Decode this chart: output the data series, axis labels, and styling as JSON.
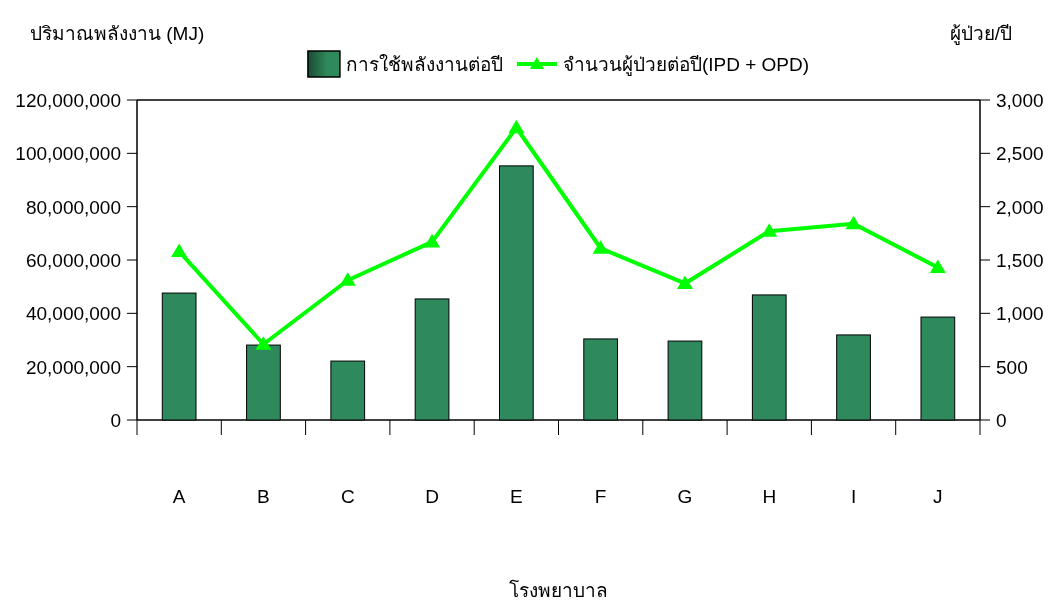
{
  "chart_data": {
    "type": "bar",
    "xlabel": "โรงพยาบาล",
    "ylabel": "ปริมาณพลังงาน (MJ)",
    "y2label": "ผู้ป่วย/ปี",
    "categories": [
      "A",
      "B",
      "C",
      "D",
      "E",
      "F",
      "G",
      "H",
      "I",
      "J"
    ],
    "series": [
      {
        "name": "การใช้พลังงานต่อปี",
        "color": "#2e8a5c",
        "values": [
          47600000,
          28100000,
          22100000,
          45400000,
          95300000,
          30400000,
          29600000,
          46900000,
          31900000,
          38600000
        ]
      },
      {
        "name": "จำนวนผู้ป่วยต่อปี(IPD + OPD)",
        "type": "line",
        "axis": "y2",
        "color": "#00ff00",
        "marker": "triangle",
        "values": [
          1580,
          710,
          1310,
          1670,
          2740,
          1610,
          1280,
          1770,
          1840,
          1430
        ]
      }
    ],
    "ylim": [
      0,
      120000000
    ],
    "yticks": [
      {
        "value": 0,
        "label": "0"
      },
      {
        "value": 20000000,
        "label": "20,000,000"
      },
      {
        "value": 40000000,
        "label": "40,000,000"
      },
      {
        "value": 60000000,
        "label": "60,000,000"
      },
      {
        "value": 80000000,
        "label": "80,000,000"
      },
      {
        "value": 100000000,
        "label": "100,000,000"
      },
      {
        "value": 120000000,
        "label": "120,000,000"
      }
    ],
    "y2lim": [
      0,
      3000
    ],
    "y2ticks": [
      {
        "value": 0,
        "label": "0"
      },
      {
        "value": 500,
        "label": "500"
      },
      {
        "value": 1000,
        "label": "1,000"
      },
      {
        "value": 1500,
        "label": "1,500"
      },
      {
        "value": 2000,
        "label": "2,000"
      },
      {
        "value": 2500,
        "label": "2,500"
      },
      {
        "value": 3000,
        "label": "3,000"
      }
    ],
    "grid": false,
    "legend": "top"
  }
}
